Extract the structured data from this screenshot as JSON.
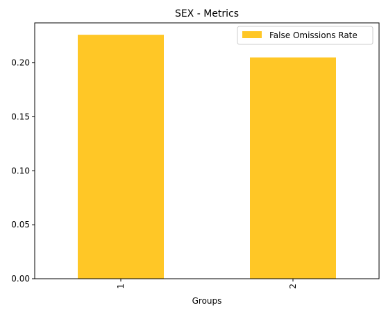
{
  "chart_data": {
    "type": "bar",
    "title": "SEX - Metrics",
    "xlabel": "Groups",
    "ylabel": "",
    "categories": [
      "1",
      "2"
    ],
    "series": [
      {
        "name": "False Omissions Rate",
        "values": [
          0.226,
          0.205
        ],
        "color": "#FFC726"
      }
    ],
    "ylim": [
      0,
      0.237
    ],
    "yticks": [
      0.0,
      0.05,
      0.1,
      0.15,
      0.2
    ],
    "ytick_labels": [
      "0.00",
      "0.05",
      "0.10",
      "0.15",
      "0.20"
    ],
    "grid": false,
    "legend_position": "top-right",
    "xtick_rotation": "vertical"
  }
}
